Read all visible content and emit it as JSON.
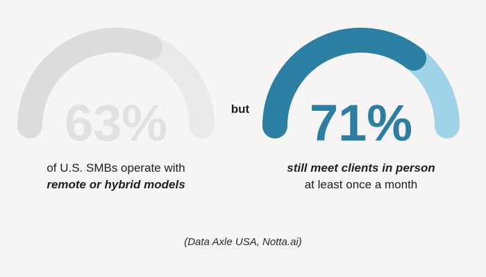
{
  "chart_data": [
    {
      "type": "gauge",
      "value": 63,
      "max": 100,
      "label": "63%",
      "caption_line1": "of U.S. SMBs operate with",
      "caption_line2": "remote or hybrid models",
      "colors": {
        "fill": "#dcdcdc",
        "track": "#e9e9e9",
        "text": "#e1e1e1"
      }
    },
    {
      "type": "gauge",
      "value": 71,
      "max": 100,
      "label": "71%",
      "caption_line1": "still meet clients in person",
      "caption_line2": "at least once a month",
      "colors": {
        "fill": "#2b7fa3",
        "track": "#9fd3e8",
        "text": "#2b7fa3"
      }
    }
  ],
  "connector_text": "but",
  "source_text": "(Data Axle USA, Notta.ai)",
  "background": "#f6f5f3"
}
